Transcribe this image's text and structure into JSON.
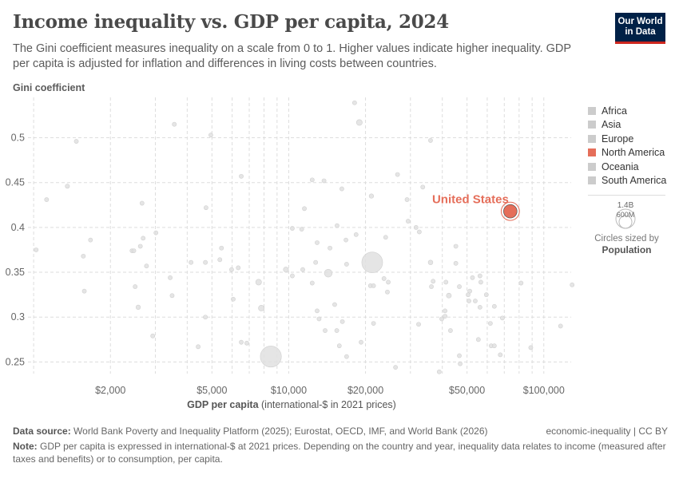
{
  "header": {
    "title": "Income inequality vs. GDP per capita, 2024",
    "subtitle": "The Gini coefficient measures inequality on a scale from 0 to 1. Higher values indicate higher inequality. GDP per capita is adjusted for inflation and differences in living costs between countries.",
    "logo": [
      "Our World",
      "in Data"
    ]
  },
  "colors": {
    "accent": "#e56e5a",
    "default_point": "#d9d9d9",
    "logo_bg": "#002147",
    "logo_bar": "#ce261e"
  },
  "legend": {
    "items": [
      {
        "label": "Africa",
        "color": "#cccccc"
      },
      {
        "label": "Asia",
        "color": "#cccccc"
      },
      {
        "label": "Europe",
        "color": "#cccccc"
      },
      {
        "label": "North America",
        "color": "#e56e5a"
      },
      {
        "label": "Oceania",
        "color": "#cccccc"
      },
      {
        "label": "South America",
        "color": "#cccccc"
      }
    ],
    "size_large": "1.4B",
    "size_small": "600M",
    "sized_by": "Circles sized by",
    "sized_var": "Population"
  },
  "footer": {
    "source_label": "Data source:",
    "source": "World Bank Poverty and Inequality Platform (2025); Eurostat, OECD, IMF, and World Bank (2026)",
    "license": "economic-inequality | CC BY",
    "note_label": "Note:",
    "note": "GDP per capita is expressed in international-$ at 2021 prices. Depending on the country and year, inequality data relates to income (measured after taxes and benefits) or to consumption, per capita."
  },
  "chart_data": {
    "type": "scatter",
    "title": "Income inequality vs. GDP per capita, 2024",
    "xlabel_bold": "GDP per capita",
    "xlabel_rest": " (international-$ in 2021 prices)",
    "ylabel": "Gini coefficient",
    "xscale": "log",
    "xlim": [
      950,
      128000
    ],
    "ylim": [
      0.237,
      0.545
    ],
    "xticks": [
      {
        "v": 2000,
        "label": "$2,000"
      },
      {
        "v": 5000,
        "label": "$5,000"
      },
      {
        "v": 10000,
        "label": "$10,000"
      },
      {
        "v": 20000,
        "label": "$20,000"
      },
      {
        "v": 50000,
        "label": "$50,000"
      },
      {
        "v": 100000,
        "label": "$100,000"
      }
    ],
    "yticks": [
      {
        "v": 0.25,
        "label": "0.25"
      },
      {
        "v": 0.3,
        "label": "0.3"
      },
      {
        "v": 0.35,
        "label": "0.35"
      },
      {
        "v": 0.4,
        "label": "0.4"
      },
      {
        "v": 0.45,
        "label": "0.45"
      },
      {
        "v": 0.5,
        "label": "0.5"
      }
    ],
    "grid": true,
    "legend_position": "right",
    "size_variable": "Population (millions)",
    "highlight": {
      "name": "United States",
      "gdp": 73900,
      "gini": 0.418,
      "pop": 340,
      "region": "North America"
    },
    "points": [
      [
        3560,
        0.515,
        10
      ],
      [
        4950,
        0.503,
        8
      ],
      [
        1470,
        0.496,
        15
      ],
      [
        1356,
        0.446,
        60
      ],
      [
        1124,
        0.431,
        10
      ],
      [
        2660,
        0.427,
        40
      ],
      [
        4740,
        0.422,
        10
      ],
      [
        6515,
        0.457,
        8
      ],
      [
        10330,
        0.399,
        10
      ],
      [
        3016,
        0.394,
        10
      ],
      [
        1671,
        0.386,
        10
      ],
      [
        2687,
        0.388,
        10
      ],
      [
        2620,
        0.379,
        10
      ],
      [
        2430,
        0.374,
        8
      ],
      [
        2470,
        0.374,
        8
      ],
      [
        1023,
        0.375,
        10
      ],
      [
        1566,
        0.368,
        20
      ],
      [
        5450,
        0.377,
        35
      ],
      [
        4140,
        0.361,
        10
      ],
      [
        4713,
        0.361,
        10
      ],
      [
        5370,
        0.364,
        12
      ],
      [
        2770,
        0.357,
        15
      ],
      [
        5970,
        0.353,
        25
      ],
      [
        6340,
        0.355,
        10
      ],
      [
        9750,
        0.353,
        85
      ],
      [
        10330,
        0.346,
        15
      ],
      [
        7620,
        0.339,
        110
      ],
      [
        3430,
        0.344,
        10
      ],
      [
        2500,
        0.334,
        10
      ],
      [
        3490,
        0.324,
        10
      ],
      [
        1580,
        0.329,
        15
      ],
      [
        6060,
        0.32,
        10
      ],
      [
        2570,
        0.311,
        65
      ],
      [
        7810,
        0.31,
        110
      ],
      [
        4713,
        0.3,
        12
      ],
      [
        2930,
        0.279,
        10
      ],
      [
        6515,
        0.272,
        10
      ],
      [
        6850,
        0.271,
        10
      ],
      [
        4416,
        0.267,
        12
      ],
      [
        8510,
        0.256,
        1440
      ],
      [
        18120,
        0.539,
        12
      ],
      [
        18920,
        0.517,
        110
      ],
      [
        35970,
        0.497,
        8
      ],
      [
        26700,
        0.459,
        8
      ],
      [
        12360,
        0.453,
        8
      ],
      [
        13750,
        0.452,
        8
      ],
      [
        16150,
        0.443,
        8
      ],
      [
        33540,
        0.445,
        50
      ],
      [
        21090,
        0.435,
        65
      ],
      [
        29100,
        0.431,
        8
      ],
      [
        11520,
        0.421,
        8
      ],
      [
        29380,
        0.407,
        12
      ],
      [
        15470,
        0.402,
        20
      ],
      [
        11240,
        0.398,
        8
      ],
      [
        31560,
        0.4,
        8
      ],
      [
        32500,
        0.395,
        8
      ],
      [
        18370,
        0.392,
        8
      ],
      [
        23990,
        0.389,
        8
      ],
      [
        16760,
        0.386,
        8
      ],
      [
        12920,
        0.383,
        10
      ],
      [
        14510,
        0.377,
        10
      ],
      [
        45200,
        0.379,
        8
      ],
      [
        12750,
        0.361,
        50
      ],
      [
        16860,
        0.359,
        55
      ],
      [
        21250,
        0.361,
        1410
      ],
      [
        35970,
        0.361,
        70
      ],
      [
        45200,
        0.36,
        8
      ],
      [
        14290,
        0.349,
        200
      ],
      [
        11350,
        0.353,
        10
      ],
      [
        12360,
        0.338,
        10
      ],
      [
        20910,
        0.335,
        45
      ],
      [
        21500,
        0.335,
        12
      ],
      [
        23630,
        0.343,
        10
      ],
      [
        24560,
        0.339,
        10
      ],
      [
        24370,
        0.328,
        10
      ],
      [
        36820,
        0.34,
        10
      ],
      [
        36250,
        0.334,
        10
      ],
      [
        41330,
        0.339,
        10
      ],
      [
        46650,
        0.334,
        40
      ],
      [
        52520,
        0.344,
        40
      ],
      [
        56200,
        0.346,
        10
      ],
      [
        56630,
        0.339,
        12
      ],
      [
        51270,
        0.329,
        30
      ],
      [
        50500,
        0.325,
        35
      ],
      [
        42440,
        0.324,
        80
      ],
      [
        59520,
        0.325,
        55
      ],
      [
        53860,
        0.318,
        35
      ],
      [
        50880,
        0.318,
        10
      ],
      [
        56200,
        0.311,
        20
      ],
      [
        63990,
        0.312,
        10
      ],
      [
        81450,
        0.338,
        8
      ],
      [
        129100,
        0.336,
        8
      ],
      [
        15140,
        0.314,
        10
      ],
      [
        12920,
        0.307,
        10
      ],
      [
        13150,
        0.298,
        25
      ],
      [
        16230,
        0.295,
        10
      ],
      [
        21500,
        0.293,
        10
      ],
      [
        13890,
        0.285,
        10
      ],
      [
        15430,
        0.285,
        55
      ],
      [
        32300,
        0.292,
        10
      ],
      [
        41000,
        0.307,
        10
      ],
      [
        41000,
        0.301,
        10
      ],
      [
        39800,
        0.298,
        10
      ],
      [
        43060,
        0.285,
        25
      ],
      [
        61730,
        0.293,
        10
      ],
      [
        68790,
        0.299,
        10
      ],
      [
        116300,
        0.29,
        8
      ],
      [
        19210,
        0.272,
        10
      ],
      [
        15790,
        0.268,
        10
      ],
      [
        16860,
        0.256,
        25
      ],
      [
        55390,
        0.275,
        8
      ],
      [
        62170,
        0.268,
        8
      ],
      [
        63990,
        0.268,
        8
      ],
      [
        88900,
        0.266,
        8
      ],
      [
        67510,
        0.258,
        8
      ],
      [
        46650,
        0.257,
        10
      ],
      [
        47000,
        0.248,
        10
      ],
      [
        26220,
        0.244,
        8
      ],
      [
        38900,
        0.239,
        8
      ]
    ]
  }
}
